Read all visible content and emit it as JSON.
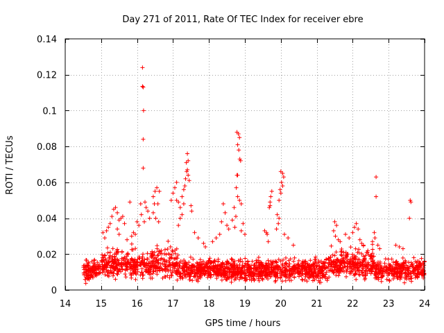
{
  "chart_data": {
    "type": "scatter",
    "title": "Day 271 of 2011, Rate Of TEC Index for receiver ebre",
    "xlabel": "GPS time / hours",
    "ylabel": "ROTI / TECUs",
    "xlim": [
      14,
      24
    ],
    "ylim": [
      0,
      0.14
    ],
    "x_ticks": [
      "14",
      "15",
      "16",
      "17",
      "18",
      "19",
      "20",
      "21",
      "22",
      "23",
      "24"
    ],
    "y_ticks": [
      "0",
      "0.02",
      "0.04",
      "0.06",
      "0.08",
      "0.1",
      "0.12",
      "0.14"
    ],
    "grid": true,
    "marker": "+",
    "marker_color": "#ff0000",
    "series": [
      {
        "name": "ROTI",
        "points": [
          [
            16.15,
            0.124
          ],
          [
            16.17,
            0.113
          ],
          [
            16.15,
            0.1135
          ],
          [
            16.18,
            0.1
          ],
          [
            16.17,
            0.084
          ],
          [
            16.17,
            0.068
          ],
          [
            16.1,
            0.048
          ],
          [
            16.12,
            0.042
          ],
          [
            16.22,
            0.049
          ],
          [
            16.25,
            0.046
          ],
          [
            16.3,
            0.044
          ],
          [
            16.2,
            0.038
          ],
          [
            16.45,
            0.052
          ],
          [
            16.5,
            0.055
          ],
          [
            16.55,
            0.057
          ],
          [
            16.62,
            0.055
          ],
          [
            16.48,
            0.048
          ],
          [
            16.58,
            0.048
          ],
          [
            16.52,
            0.04
          ],
          [
            16.6,
            0.038
          ],
          [
            16.45,
            0.043
          ],
          [
            16.35,
            0.04
          ],
          [
            15.35,
            0.045
          ],
          [
            15.4,
            0.046
          ],
          [
            15.45,
            0.043
          ],
          [
            15.3,
            0.041
          ],
          [
            15.5,
            0.039
          ],
          [
            15.25,
            0.037
          ],
          [
            15.2,
            0.035
          ],
          [
            15.55,
            0.04
          ],
          [
            15.6,
            0.041
          ],
          [
            15.65,
            0.037
          ],
          [
            15.15,
            0.033
          ],
          [
            15.1,
            0.029
          ],
          [
            15.05,
            0.032
          ],
          [
            15.95,
            0.031
          ],
          [
            15.9,
            0.032
          ],
          [
            16.0,
            0.038
          ],
          [
            15.8,
            0.049
          ],
          [
            15.72,
            0.028
          ],
          [
            16.05,
            0.036
          ],
          [
            15.85,
            0.03
          ],
          [
            15.45,
            0.034
          ],
          [
            15.5,
            0.031
          ],
          [
            17.0,
            0.054
          ],
          [
            17.05,
            0.057
          ],
          [
            17.1,
            0.06
          ],
          [
            16.95,
            0.05
          ],
          [
            17.15,
            0.049
          ],
          [
            17.2,
            0.046
          ],
          [
            17.25,
            0.052
          ],
          [
            17.3,
            0.056
          ],
          [
            17.35,
            0.062
          ],
          [
            17.38,
            0.066
          ],
          [
            17.4,
            0.067
          ],
          [
            17.42,
            0.064
          ],
          [
            17.45,
            0.061
          ],
          [
            17.37,
            0.071
          ],
          [
            17.4,
            0.076
          ],
          [
            17.42,
            0.072
          ],
          [
            17.33,
            0.058
          ],
          [
            17.3,
            0.048
          ],
          [
            17.2,
            0.04
          ],
          [
            17.15,
            0.036
          ],
          [
            17.5,
            0.047
          ],
          [
            17.52,
            0.044
          ],
          [
            17.25,
            0.042
          ],
          [
            17.1,
            0.05
          ],
          [
            17.6,
            0.032
          ],
          [
            17.7,
            0.029
          ],
          [
            17.85,
            0.026
          ],
          [
            17.9,
            0.024
          ],
          [
            18.4,
            0.048
          ],
          [
            18.45,
            0.043
          ],
          [
            18.35,
            0.038
          ],
          [
            18.5,
            0.036
          ],
          [
            18.55,
            0.034
          ],
          [
            18.3,
            0.031
          ],
          [
            18.2,
            0.029
          ],
          [
            18.1,
            0.027
          ],
          [
            18.78,
            0.088
          ],
          [
            18.82,
            0.087
          ],
          [
            18.85,
            0.085
          ],
          [
            18.8,
            0.081
          ],
          [
            18.83,
            0.078
          ],
          [
            18.86,
            0.073
          ],
          [
            18.88,
            0.072
          ],
          [
            18.78,
            0.064
          ],
          [
            18.8,
            0.064
          ],
          [
            18.76,
            0.057
          ],
          [
            18.8,
            0.052
          ],
          [
            18.85,
            0.05
          ],
          [
            18.9,
            0.048
          ],
          [
            18.7,
            0.046
          ],
          [
            18.75,
            0.041
          ],
          [
            18.65,
            0.039
          ],
          [
            18.95,
            0.037
          ],
          [
            18.72,
            0.035
          ],
          [
            18.9,
            0.033
          ],
          [
            19.0,
            0.031
          ],
          [
            19.55,
            0.033
          ],
          [
            19.6,
            0.032
          ],
          [
            19.62,
            0.031
          ],
          [
            19.65,
            0.027
          ],
          [
            19.68,
            0.046
          ],
          [
            19.7,
            0.047
          ],
          [
            19.72,
            0.052
          ],
          [
            19.75,
            0.055
          ],
          [
            19.7,
            0.049
          ],
          [
            20.0,
            0.066
          ],
          [
            20.05,
            0.065
          ],
          [
            20.08,
            0.063
          ],
          [
            20.02,
            0.06
          ],
          [
            20.05,
            0.058
          ],
          [
            19.98,
            0.056
          ],
          [
            20.0,
            0.054
          ],
          [
            19.95,
            0.05
          ],
          [
            19.9,
            0.042
          ],
          [
            19.95,
            0.04
          ],
          [
            19.93,
            0.037
          ],
          [
            19.88,
            0.034
          ],
          [
            20.1,
            0.031
          ],
          [
            20.2,
            0.029
          ],
          [
            20.35,
            0.025
          ],
          [
            21.5,
            0.038
          ],
          [
            21.55,
            0.036
          ],
          [
            21.47,
            0.033
          ],
          [
            21.52,
            0.03
          ],
          [
            21.6,
            0.028
          ],
          [
            21.65,
            0.027
          ],
          [
            21.8,
            0.031
          ],
          [
            21.9,
            0.029
          ],
          [
            22.0,
            0.032
          ],
          [
            22.05,
            0.035
          ],
          [
            22.1,
            0.037
          ],
          [
            22.15,
            0.034
          ],
          [
            22.2,
            0.028
          ],
          [
            22.25,
            0.026
          ],
          [
            22.3,
            0.025
          ],
          [
            22.65,
            0.063
          ],
          [
            22.65,
            0.052
          ],
          [
            22.6,
            0.032
          ],
          [
            22.62,
            0.029
          ],
          [
            22.55,
            0.027
          ],
          [
            22.7,
            0.025
          ],
          [
            22.75,
            0.023
          ],
          [
            23.6,
            0.05
          ],
          [
            23.62,
            0.049
          ],
          [
            23.58,
            0.04
          ],
          [
            23.2,
            0.025
          ],
          [
            23.3,
            0.024
          ],
          [
            23.4,
            0.023
          ],
          [
            23.7,
            0.018
          ],
          [
            23.8,
            0.016
          ],
          [
            23.9,
            0.014
          ],
          [
            23.95,
            0.015
          ]
        ],
        "band": {
          "x_range": [
            14.5,
            24.0
          ],
          "y_range": [
            0.003,
            0.025
          ],
          "count": 2200,
          "seed": 271
        }
      }
    ]
  }
}
